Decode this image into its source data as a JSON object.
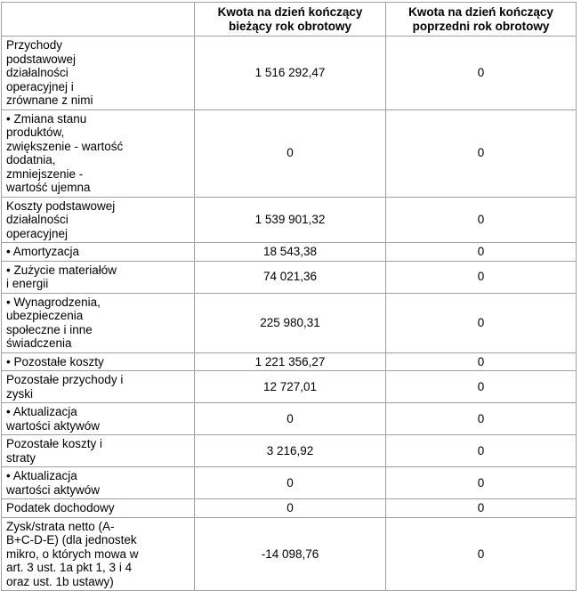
{
  "table": {
    "columns": {
      "label": "",
      "current": "Kwota na dzień kończący\nbieżący rok obrotowy",
      "previous": "Kwota na dzień kończący\npoprzedni rok obrotowy"
    },
    "rows": [
      {
        "label": "Przychody\npodstawowej\ndziałalności\noperacyjnej i\nzrównane z nimi",
        "current": "1 516 292,47",
        "previous": "0"
      },
      {
        "label": "• Zmiana stanu\nproduktów,\nzwiększenie - wartość\ndodatnia,\nzmniejszenie -\nwartość ujemna",
        "current": "0",
        "previous": "0"
      },
      {
        "label": "Koszty podstawowej\ndziałalności\noperacyjnej",
        "current": "1 539 901,32",
        "previous": "0"
      },
      {
        "label": "• Amortyzacja",
        "current": "18 543,38",
        "previous": "0"
      },
      {
        "label": "• Zużycie materiałów\ni energii",
        "current": "74 021,36",
        "previous": "0"
      },
      {
        "label": "• Wynagrodzenia,\nubezpieczenia\nspołeczne i inne\nświadczenia",
        "current": "225 980,31",
        "previous": "0"
      },
      {
        "label": "• Pozostałe koszty",
        "current": "1 221 356,27",
        "previous": "0"
      },
      {
        "label": "Pozostałe przychody i\nzyski",
        "current": "12 727,01",
        "previous": "0"
      },
      {
        "label": "• Aktualizacja\nwartości aktywów",
        "current": "0",
        "previous": "0"
      },
      {
        "label": "Pozostałe koszty i\nstraty",
        "current": "3 216,92",
        "previous": "0"
      },
      {
        "label": "• Aktualizacja\nwartości aktywów",
        "current": "0",
        "previous": "0"
      },
      {
        "label": "Podatek dochodowy",
        "current": "0",
        "previous": "0"
      },
      {
        "label": "Zysk/strata netto (A-\nB+C-D-E) (dla jednostek\nmikro, o których mowa w\nart. 3 ust. 1a pkt 1, 3 i 4\noraz ust. 1b ustawy)",
        "current": "-14 098,76",
        "previous": "0"
      }
    ],
    "colors": {
      "border": "#a0a0a0",
      "text": "#000000",
      "background": "#ffffff"
    }
  }
}
